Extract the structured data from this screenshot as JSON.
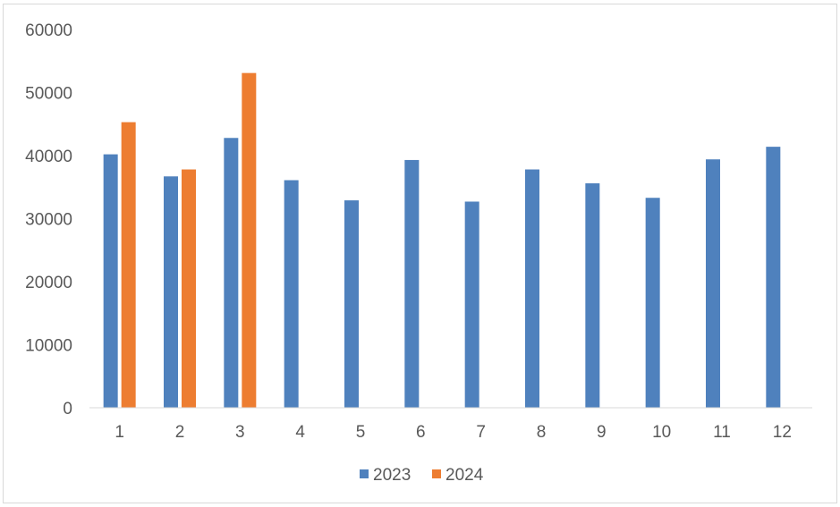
{
  "chart_data": {
    "type": "bar",
    "title": "",
    "xlabel": "",
    "ylabel": "",
    "ylim": [
      0,
      60000
    ],
    "yticks": [
      0,
      10000,
      20000,
      30000,
      40000,
      50000,
      60000
    ],
    "grid": false,
    "legend_position": "bottom",
    "categories": [
      "1",
      "2",
      "3",
      "4",
      "5",
      "6",
      "7",
      "8",
      "9",
      "10",
      "11",
      "12"
    ],
    "series": [
      {
        "name": "2023",
        "color": "#4f81bd",
        "values": [
          40200,
          36700,
          42800,
          36100,
          32900,
          39300,
          32700,
          37800,
          35600,
          33300,
          39400,
          41400
        ]
      },
      {
        "name": "2024",
        "color": "#ed7d31",
        "values": [
          45300,
          37800,
          53100,
          null,
          null,
          null,
          null,
          null,
          null,
          null,
          null,
          null
        ]
      }
    ]
  }
}
